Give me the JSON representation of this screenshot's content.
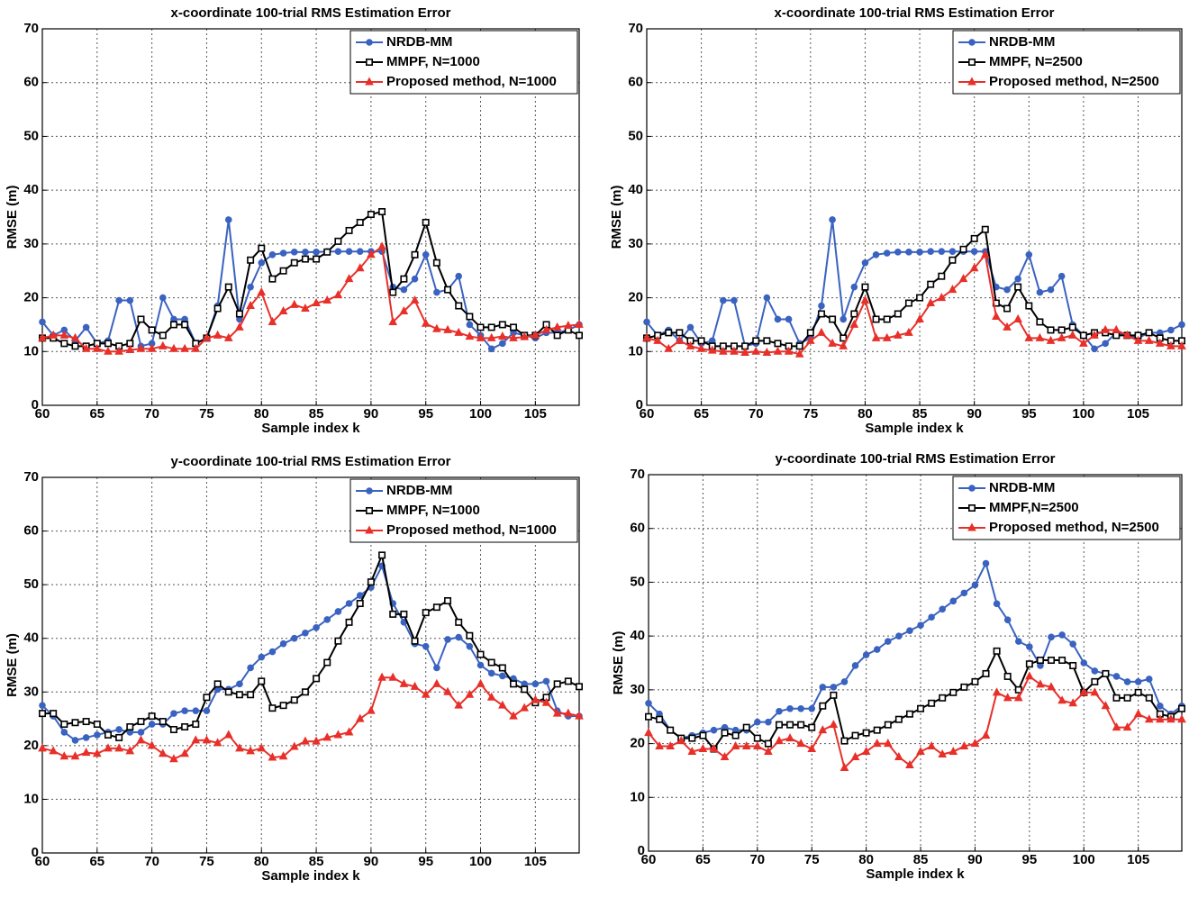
{
  "chart_data": [
    {
      "type": "line",
      "title": "x-coordinate 100-trial RMS Estimation Error",
      "x_label": "Sample index k",
      "y_label": "RMSE (m)",
      "xlim": [
        60,
        109
      ],
      "ylim": [
        0,
        70
      ],
      "xticks": [
        60,
        65,
        70,
        75,
        80,
        85,
        90,
        95,
        100,
        105
      ],
      "yticks": [
        0,
        10,
        20,
        30,
        40,
        50,
        60,
        70
      ],
      "grid": true,
      "legend": "upper right",
      "x": [
        60,
        61,
        62,
        63,
        64,
        65,
        66,
        67,
        68,
        69,
        70,
        71,
        72,
        73,
        74,
        75,
        76,
        77,
        78,
        79,
        80,
        81,
        82,
        83,
        84,
        85,
        86,
        87,
        88,
        89,
        90,
        91,
        92,
        93,
        94,
        95,
        96,
        97,
        98,
        99,
        100,
        101,
        102,
        103,
        104,
        105,
        106,
        107,
        108,
        109
      ],
      "series": [
        {
          "name": "NRDB-MM",
          "color": "#3a62c0",
          "marker": "circle",
          "values": [
            15.5,
            13,
            14,
            12,
            14.5,
            11.5,
            12,
            19.5,
            19.5,
            11,
            11.5,
            20,
            16,
            16,
            11.5,
            12.5,
            18.5,
            34.5,
            16,
            22,
            26.5,
            28,
            28.3,
            28.5,
            28.5,
            28.5,
            28.6,
            28.6,
            28.6,
            28.6,
            28.6,
            28.6,
            22,
            21.5,
            23.5,
            28,
            21,
            21.5,
            24,
            15,
            13,
            10.5,
            11.5,
            13.5,
            13,
            12.5,
            13.5,
            13.5,
            14,
            15
          ]
        },
        {
          "name": "MMPF, N=1000",
          "color": "#000000",
          "marker": "square",
          "values": [
            12.5,
            12.5,
            11.5,
            11,
            11,
            11.5,
            11.5,
            11,
            11.5,
            16,
            14,
            13,
            15,
            15,
            11.5,
            12.5,
            18,
            22,
            17,
            27,
            29.2,
            23.5,
            25,
            26.5,
            27.2,
            27.2,
            28.5,
            30.5,
            32.5,
            34,
            35.5,
            36,
            21,
            23.5,
            28,
            34,
            26.5,
            21.5,
            18.5,
            16.5,
            14.5,
            14.5,
            15,
            14.5,
            13,
            13,
            15,
            13,
            14,
            13
          ]
        },
        {
          "name": "Proposed method, N=1000",
          "color": "#e8302a",
          "marker": "triangle",
          "values": [
            12.5,
            13,
            13,
            12.5,
            10.5,
            10.5,
            10,
            10,
            10.3,
            10.5,
            10.5,
            11,
            10.5,
            10.5,
            10.5,
            12.5,
            13,
            12.5,
            14.5,
            18.5,
            21,
            15.5,
            17.5,
            18.7,
            18,
            19,
            19.5,
            20.5,
            23.5,
            25.5,
            28,
            29.5,
            15.5,
            17.5,
            19.5,
            15.2,
            14.2,
            14,
            13.5,
            12.8,
            12.5,
            12.5,
            12.8,
            12.5,
            12.7,
            13,
            14,
            14.5,
            14.8,
            15
          ]
        }
      ]
    },
    {
      "type": "line",
      "title": "x-coordinate 100-trial RMS Estimation Error",
      "x_label": "Sample index k",
      "y_label": "RMSE (m)",
      "xlim": [
        60,
        109
      ],
      "ylim": [
        0,
        70
      ],
      "xticks": [
        60,
        65,
        70,
        75,
        80,
        85,
        90,
        95,
        100,
        105
      ],
      "yticks": [
        0,
        10,
        20,
        30,
        40,
        50,
        60,
        70
      ],
      "grid": true,
      "legend": "upper right",
      "x": [
        60,
        61,
        62,
        63,
        64,
        65,
        66,
        67,
        68,
        69,
        70,
        71,
        72,
        73,
        74,
        75,
        76,
        77,
        78,
        79,
        80,
        81,
        82,
        83,
        84,
        85,
        86,
        87,
        88,
        89,
        90,
        91,
        92,
        93,
        94,
        95,
        96,
        97,
        98,
        99,
        100,
        101,
        102,
        103,
        104,
        105,
        106,
        107,
        108,
        109
      ],
      "series": [
        {
          "name": "NRDB-MM",
          "color": "#3a62c0",
          "marker": "circle",
          "values": [
            15.5,
            13,
            14,
            12,
            14.5,
            11.5,
            12,
            19.5,
            19.5,
            11,
            11.5,
            20,
            16,
            16,
            11.5,
            12.5,
            18.5,
            34.5,
            16,
            22,
            26.5,
            28,
            28.3,
            28.5,
            28.5,
            28.5,
            28.6,
            28.6,
            28.6,
            28.6,
            28.6,
            28.6,
            22,
            21.5,
            23.5,
            28,
            21,
            21.5,
            24,
            15,
            13,
            10.5,
            11.5,
            13.5,
            13,
            12.5,
            13.5,
            13.5,
            14,
            15
          ]
        },
        {
          "name": "MMPF, N=2500",
          "color": "#000000",
          "marker": "square",
          "values": [
            12.5,
            13,
            13.5,
            13.5,
            12,
            12,
            11,
            11,
            11,
            11,
            12,
            12,
            11.5,
            11,
            11,
            13.5,
            17,
            16,
            12.5,
            17,
            22,
            16,
            16,
            17,
            19,
            20,
            22.5,
            24,
            27,
            29,
            31,
            32.7,
            19,
            18,
            22,
            18.5,
            15.5,
            14,
            14,
            14.5,
            13,
            13.5,
            13.5,
            13,
            13,
            13,
            13.5,
            12.5,
            12,
            12
          ]
        },
        {
          "name": "Proposed method, N=2500",
          "color": "#e8302a",
          "marker": "triangle",
          "values": [
            12.5,
            12,
            10.5,
            12,
            11,
            10.5,
            10.2,
            10,
            10,
            9.8,
            10,
            9.8,
            10,
            10,
            9.5,
            12,
            13.5,
            11.5,
            11,
            15,
            19.5,
            12.5,
            12.5,
            13,
            13.5,
            16,
            19,
            20,
            21.5,
            23.5,
            25.5,
            28,
            16.5,
            14.5,
            16,
            12.5,
            12.5,
            12,
            12.5,
            13,
            11.5,
            13,
            14,
            14,
            13,
            12,
            12,
            11.5,
            11,
            11
          ]
        }
      ]
    },
    {
      "type": "line",
      "title": "y-coordinate 100-trial RMS Estimation Error",
      "x_label": "Sample index k",
      "y_label": "RMSE (m)",
      "xlim": [
        60,
        109
      ],
      "ylim": [
        0,
        70
      ],
      "xticks": [
        60,
        65,
        70,
        75,
        80,
        85,
        90,
        95,
        100,
        105
      ],
      "yticks": [
        0,
        10,
        20,
        30,
        40,
        50,
        60,
        70
      ],
      "grid": true,
      "legend": "upper right",
      "x": [
        60,
        61,
        62,
        63,
        64,
        65,
        66,
        67,
        68,
        69,
        70,
        71,
        72,
        73,
        74,
        75,
        76,
        77,
        78,
        79,
        80,
        81,
        82,
        83,
        84,
        85,
        86,
        87,
        88,
        89,
        90,
        91,
        92,
        93,
        94,
        95,
        96,
        97,
        98,
        99,
        100,
        101,
        102,
        103,
        104,
        105,
        106,
        107,
        108,
        109
      ],
      "series": [
        {
          "name": "NRDB-MM",
          "color": "#3a62c0",
          "marker": "circle",
          "values": [
            27.5,
            25.5,
            22.5,
            21,
            21.5,
            22,
            22.5,
            23,
            22.5,
            22.5,
            24,
            24,
            26,
            26.5,
            26.5,
            26.5,
            30.5,
            30.5,
            31.5,
            34.5,
            36.5,
            37.5,
            39,
            40,
            41,
            42,
            43.5,
            45,
            46.5,
            48,
            49.5,
            53.5,
            46.5,
            43,
            39,
            38.5,
            34.5,
            39.8,
            40.2,
            38.5,
            35,
            33.5,
            33,
            32.5,
            31.5,
            31.5,
            32,
            26.5,
            25.5,
            25.5
          ]
        },
        {
          "name": "MMPF, N=1000",
          "color": "#000000",
          "marker": "square",
          "values": [
            26,
            26,
            24,
            24.3,
            24.5,
            24,
            22,
            21.5,
            23.5,
            24.5,
            25.5,
            24.5,
            23,
            23.5,
            24,
            29,
            31.5,
            30,
            29.5,
            29.5,
            32,
            27,
            27.5,
            28.5,
            30,
            32.5,
            35.5,
            39.5,
            43,
            46.5,
            50.5,
            55.5,
            44.5,
            44.5,
            39.5,
            44.8,
            45.8,
            47,
            43,
            40.5,
            37,
            35.5,
            34.5,
            31.5,
            30.5,
            28,
            29,
            31.5,
            32,
            31
          ]
        },
        {
          "name": "Proposed method, N=1000",
          "color": "#e8302a",
          "marker": "triangle",
          "values": [
            19.5,
            19,
            18,
            18,
            18.7,
            18.5,
            19.5,
            19.5,
            19,
            21,
            20,
            18.5,
            17.5,
            18.5,
            21,
            21,
            20.5,
            22,
            19.5,
            19,
            19.5,
            17.8,
            18,
            19.8,
            20.8,
            20.8,
            21.5,
            22,
            22.5,
            25,
            26.5,
            32.7,
            32.7,
            31.5,
            31,
            29.5,
            31.5,
            30,
            27.5,
            29.5,
            31.5,
            29,
            27.5,
            25.5,
            27,
            28.5,
            28,
            26,
            26,
            25.5
          ]
        }
      ]
    },
    {
      "type": "line",
      "title": "y-coordinate 100-trial RMS Estimation Error",
      "x_label": "Sample index k",
      "y_label": "RMSE (m)",
      "xlim": [
        60,
        109
      ],
      "ylim": [
        0,
        70
      ],
      "xticks": [
        60,
        65,
        70,
        75,
        80,
        85,
        90,
        95,
        100,
        105
      ],
      "yticks": [
        0,
        10,
        20,
        30,
        40,
        50,
        60,
        70
      ],
      "grid": true,
      "legend": "upper right",
      "x": [
        60,
        61,
        62,
        63,
        64,
        65,
        66,
        67,
        68,
        69,
        70,
        71,
        72,
        73,
        74,
        75,
        76,
        77,
        78,
        79,
        80,
        81,
        82,
        83,
        84,
        85,
        86,
        87,
        88,
        89,
        90,
        91,
        92,
        93,
        94,
        95,
        96,
        97,
        98,
        99,
        100,
        101,
        102,
        103,
        104,
        105,
        106,
        107,
        108,
        109
      ],
      "series": [
        {
          "name": "NRDB-MM",
          "color": "#3a62c0",
          "marker": "circle",
          "values": [
            27.5,
            25.5,
            22.5,
            21,
            21.5,
            22,
            22.5,
            23,
            22.5,
            22.5,
            24,
            24,
            26,
            26.5,
            26.5,
            26.5,
            30.5,
            30.5,
            31.5,
            34.5,
            36.5,
            37.5,
            39,
            40,
            41,
            42,
            43.5,
            45,
            46.5,
            48,
            49.5,
            53.5,
            46,
            43,
            39,
            38,
            34.5,
            39.8,
            40.2,
            38.5,
            35,
            33.5,
            33,
            32.5,
            31.5,
            31.5,
            32,
            27,
            25.5,
            27
          ]
        },
        {
          "name": "MMPF,N=2500",
          "color": "#000000",
          "marker": "square",
          "values": [
            25,
            24.5,
            22.5,
            21,
            21,
            21.5,
            19,
            22,
            21.5,
            23,
            21,
            20,
            23.5,
            23.5,
            23.5,
            23,
            27,
            29,
            20.5,
            21.5,
            22,
            22.5,
            23.5,
            24.5,
            25.5,
            26.5,
            27.5,
            28.5,
            29.5,
            30.5,
            31.5,
            33,
            37.2,
            32.5,
            30,
            34.8,
            35.5,
            35.5,
            35.5,
            34.5,
            29.5,
            31.5,
            33,
            28.5,
            28.5,
            29.5,
            28.5,
            25.5,
            25,
            26.5
          ]
        },
        {
          "name": "Proposed method, N=2500",
          "color": "#e8302a",
          "marker": "triangle",
          "values": [
            22,
            19.5,
            19.5,
            20.5,
            18.5,
            19,
            19,
            17.5,
            19.5,
            19.5,
            19.5,
            18.5,
            20.5,
            21,
            20,
            19,
            22.5,
            23.5,
            15.5,
            17.5,
            18.5,
            20,
            20,
            17.5,
            16,
            18.5,
            19.5,
            18,
            18.5,
            19.5,
            20,
            21.5,
            29.5,
            28.5,
            28.5,
            32.5,
            31,
            30.5,
            28,
            27.5,
            29.5,
            29.5,
            27,
            23,
            23,
            25.5,
            24.5,
            24.5,
            24.5,
            24.5
          ]
        }
      ]
    }
  ]
}
